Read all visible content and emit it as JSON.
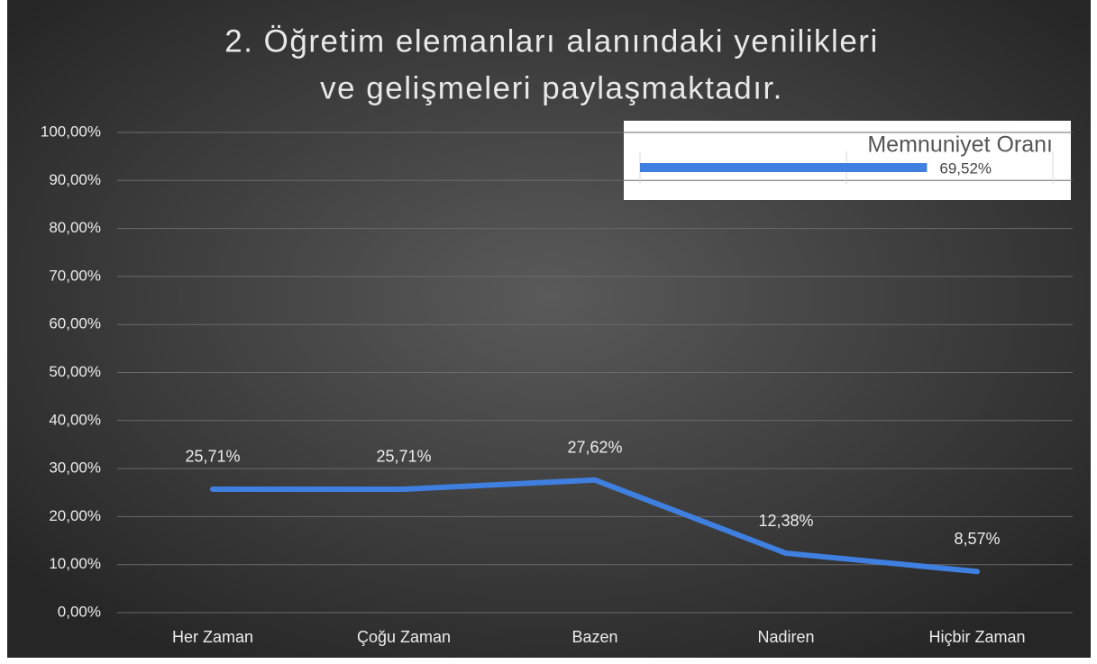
{
  "chart_data": [
    {
      "type": "line",
      "title": [
        "2. Öğretim elemanları alanındaki yenilikleri",
        "ve gelişmeleri paylaşmaktadır."
      ],
      "categories": [
        "Her Zaman",
        "Çoğu Zaman",
        "Bazen",
        "Nadiren",
        "Hiçbir Zaman"
      ],
      "values": [
        25.71,
        25.71,
        27.62,
        12.38,
        8.57
      ],
      "value_labels": [
        "25,71%",
        "25,71%",
        "27,62%",
        "12,38%",
        "8,57%"
      ],
      "color": "#3f7fe0",
      "ylim": [
        0,
        100
      ],
      "yticks": [
        {
          "value": 0,
          "label": "0,00%"
        },
        {
          "value": 10,
          "label": "10,00%"
        },
        {
          "value": 20,
          "label": "20,00%"
        },
        {
          "value": 30,
          "label": "30,00%"
        },
        {
          "value": 40,
          "label": "40,00%"
        },
        {
          "value": 50,
          "label": "50,00%"
        },
        {
          "value": 60,
          "label": "60,00%"
        },
        {
          "value": 70,
          "label": "70,00%"
        },
        {
          "value": 80,
          "label": "80,00%"
        },
        {
          "value": 90,
          "label": "90,00%"
        },
        {
          "value": 100,
          "label": "100,00%"
        }
      ],
      "grid": true
    },
    {
      "type": "hbar",
      "title": "Memnuniyet Oranı",
      "values": [
        69.52
      ],
      "value_labels": [
        "69,52%"
      ],
      "color": "#3f7fe0",
      "xlim": [
        0,
        100
      ],
      "xticks": [
        0,
        50,
        100
      ]
    }
  ]
}
